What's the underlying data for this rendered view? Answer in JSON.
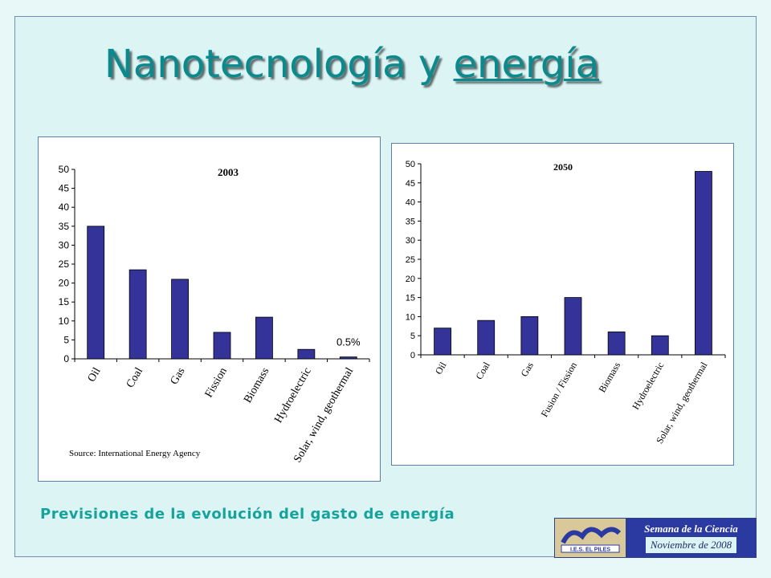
{
  "slide": {
    "title_main": "Nanotecnología y ",
    "title_underlined": "energía",
    "caption": "Previsiones de la evolución del gasto de energía",
    "logo": {
      "org_text": "I.E.S. EL PILES",
      "line1": "Semana de la Ciencia",
      "line2": "Noviembre de 2008"
    }
  },
  "colors": {
    "bar": "#33339a",
    "title": "#0a8a8c",
    "caption": "#16a39c",
    "background": "#dcf4f3"
  },
  "chart_data": [
    {
      "type": "bar",
      "title": "2003",
      "categories": [
        "Oil",
        "Coal",
        "Gas",
        "Fission",
        "Biomass",
        "Hydroelectric",
        "Solar, wind, geothermal"
      ],
      "values": [
        35,
        23.5,
        21,
        7,
        11,
        2.5,
        0.5
      ],
      "annotations": [
        {
          "category": "Solar, wind, geothermal",
          "text": "0.5%"
        }
      ],
      "source": "Source: International Energy Agency",
      "ylim": [
        0,
        50
      ],
      "yticks": [
        0,
        5,
        10,
        15,
        20,
        25,
        30,
        35,
        40,
        45,
        50
      ],
      "grid": false,
      "legend": "none"
    },
    {
      "type": "bar",
      "title": "2050",
      "categories": [
        "Oil",
        "Coal",
        "Gas",
        "Fusion / Fission",
        "Biomass",
        "Hydroelectric",
        "Solar, wind, geothermal"
      ],
      "values": [
        7,
        9,
        10,
        15,
        6,
        5,
        48
      ],
      "ylim": [
        0,
        50
      ],
      "yticks": [
        0,
        5,
        10,
        15,
        20,
        25,
        30,
        35,
        40,
        45,
        50
      ],
      "grid": false,
      "legend": "none"
    }
  ]
}
